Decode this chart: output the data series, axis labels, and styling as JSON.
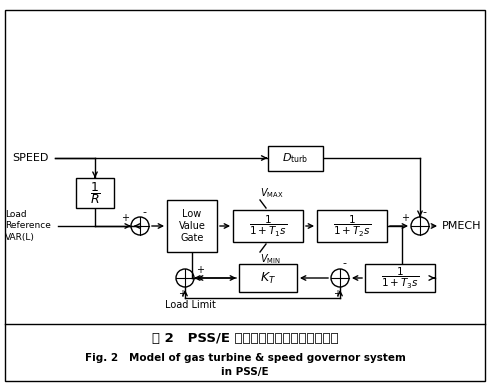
{
  "title_cn": "图 2   PSS/E 中燃气轮机及其调速系统模型",
  "title_en_line1": "Fig. 2   Model of gas turbine & speed governor system",
  "title_en_line2": "in PSS/E",
  "bg_color": "#ffffff",
  "figsize": [
    4.9,
    3.86
  ],
  "dpi": 100
}
